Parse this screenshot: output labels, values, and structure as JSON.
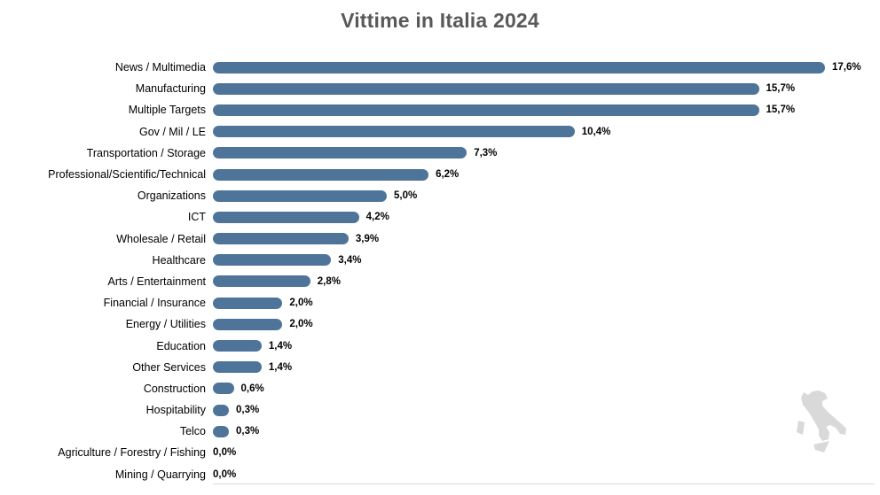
{
  "title": "Vittime in Italia 2024",
  "chart_data": {
    "type": "bar",
    "orientation": "horizontal",
    "title": "Vittime in Italia 2024",
    "xlabel": "",
    "ylabel": "",
    "xlim": [
      0,
      17.6
    ],
    "grid": false,
    "legend": false,
    "bar_color": "#4e7499",
    "categories": [
      "News / Multimedia",
      "Manufacturing",
      "Multiple Targets",
      "Gov / Mil / LE",
      "Transportation / Storage",
      "Professional/Scientific/Technical",
      "Organizations",
      "ICT",
      "Wholesale / Retail",
      "Healthcare",
      "Arts / Entertainment",
      "Financial / Insurance",
      "Energy / Utilities",
      "Education",
      "Other Services",
      "Construction",
      "Hospitability",
      "Telco",
      "Agriculture / Forestry / Fishing",
      "Mining / Quarrying"
    ],
    "values": [
      17.6,
      15.7,
      15.7,
      10.4,
      7.3,
      6.2,
      5.0,
      4.2,
      3.9,
      3.4,
      2.8,
      2.0,
      2.0,
      1.4,
      1.4,
      0.6,
      0.3,
      0.3,
      0.0,
      0.0
    ],
    "value_labels": [
      "17,6%",
      "15,7%",
      "15,7%",
      "10,4%",
      "7,3%",
      "6,2%",
      "5,0%",
      "4,2%",
      "3,9%",
      "3,4%",
      "2,8%",
      "2,0%",
      "2,0%",
      "1,4%",
      "1,4%",
      "0,6%",
      "0,3%",
      "0,3%",
      "0,0%",
      "0,0%"
    ]
  },
  "decor": {
    "title_color": "#595959",
    "axis_line_color": "#d9d9d9",
    "map_color": "#d9d9d9",
    "map_name": "italy-silhouette"
  }
}
